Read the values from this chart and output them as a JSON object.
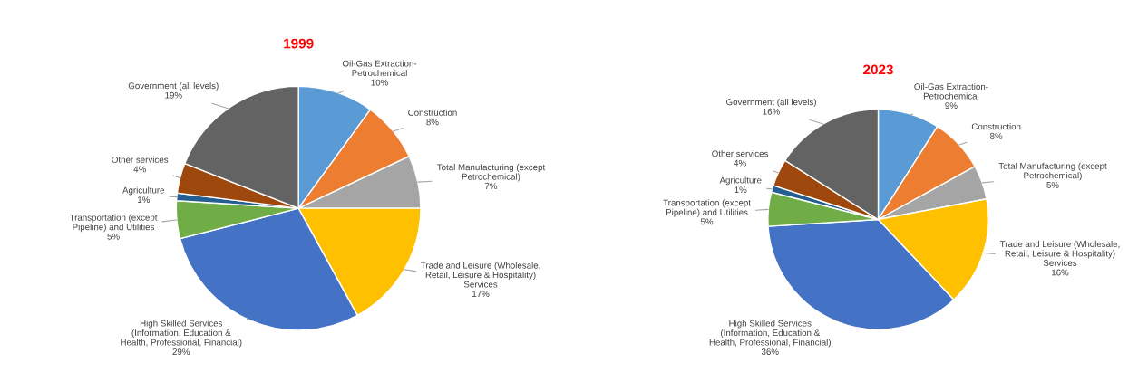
{
  "chart_data": [
    {
      "type": "pie",
      "title": "1999",
      "categories": [
        "Oil-Gas Extraction-\nPetrochemical",
        "Construction",
        "Total Manufacturing (except\nPetrochemical)",
        "Trade and Leisure (Wholesale,\nRetail, Leisure & Hospitality)\nServices",
        "High Skilled Services\n(Information, Education &\nHealth, Professional, Financial)",
        "Transportation (except\nPipeline) and Utilities",
        "Agriculture",
        "Other services",
        "Government (all levels)"
      ],
      "values": [
        10,
        8,
        7,
        17,
        29,
        5,
        1,
        4,
        19
      ],
      "value_labels": [
        "10%",
        "8%",
        "7%",
        "17%",
        "29%",
        "5%",
        "1%",
        "4%",
        "19%"
      ],
      "colors": [
        "#5b9bd5",
        "#ed7d31",
        "#a5a5a5",
        "#ffc000",
        "#4472c4",
        "#70ad47",
        "#255e91",
        "#9e480e",
        "#636363"
      ]
    },
    {
      "type": "pie",
      "title": "2023",
      "categories": [
        "Oil-Gas Extraction-\nPetrochemical",
        "Construction",
        "Total Manufacturing (except\nPetrochemical)",
        "Trade and Leisure (Wholesale,\nRetail, Leisure & Hospitality)\nServices",
        "High Skilled Services\n(Information, Education &\nHealth, Professional, Financial)",
        "Transportation (except\nPipeline) and Utilities",
        "Agriculture",
        "Other services",
        "Government (all levels)"
      ],
      "values": [
        9,
        8,
        5,
        16,
        36,
        5,
        1,
        4,
        16
      ],
      "value_labels": [
        "9%",
        "8%",
        "5%",
        "16%",
        "36%",
        "5%",
        "1%",
        "4%",
        "16%"
      ],
      "colors": [
        "#5b9bd5",
        "#ed7d31",
        "#a5a5a5",
        "#ffc000",
        "#4472c4",
        "#70ad47",
        "#255e91",
        "#9e480e",
        "#636363"
      ]
    }
  ]
}
